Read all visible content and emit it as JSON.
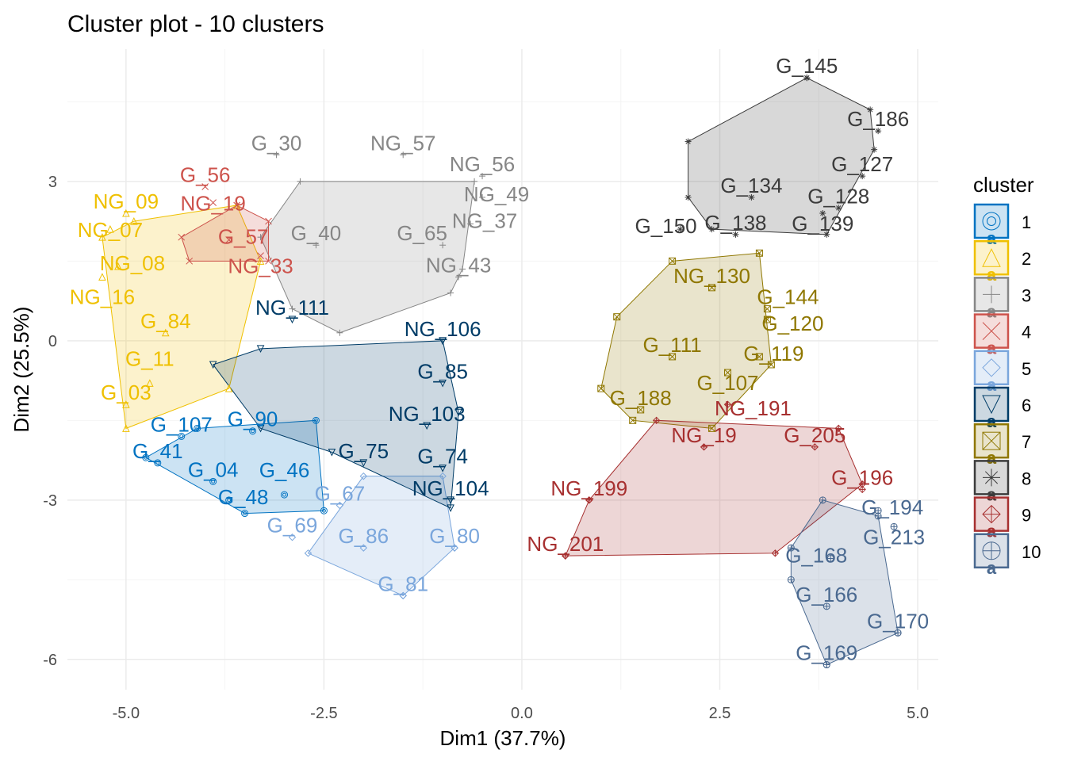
{
  "chart_data": {
    "type": "scatter",
    "title": "Cluster plot - 10 clusters",
    "xlabel": "Dim1 (37.7%)",
    "ylabel": "Dim2 (25.5%)",
    "xlim": [
      -5.74,
      5.26
    ],
    "ylim": [
      -6.57,
      5.49
    ],
    "x_ticks": [
      "-5.0",
      "-2.5",
      "0.0",
      "2.5",
      "5.0"
    ],
    "x_tick_values": [
      -5,
      -2.5,
      0,
      2.5,
      5
    ],
    "y_ticks": [
      "-6",
      "-3",
      "0",
      "3"
    ],
    "y_tick_values": [
      -6,
      -3,
      0,
      3
    ],
    "grid": true,
    "legend": {
      "title": "cluster",
      "position": "right",
      "key_glyph_letter": "a"
    },
    "clusters": [
      {
        "name": "1",
        "color": "#0073C2",
        "shape": "circle-double",
        "hull": [
          [
            -4.75,
            -2.2
          ],
          [
            -3.5,
            -3.25
          ],
          [
            -2.5,
            -3.2
          ],
          [
            -2.6,
            -1.5
          ],
          [
            -4.1,
            -1.65
          ]
        ],
        "points": [
          {
            "label": "G_41",
            "x": -4.6,
            "y": -2.3
          },
          {
            "label": "G_04",
            "x": -3.9,
            "y": -2.65
          },
          {
            "label": "G_48",
            "x": -3.7,
            "y": -3.0
          },
          {
            "label": "G_107",
            "x": -4.3,
            "y": -1.8
          },
          {
            "label": "G_90",
            "x": -3.4,
            "y": -1.7
          },
          {
            "label": "G_46",
            "x": -3.0,
            "y": -2.9
          }
        ]
      },
      {
        "name": "2",
        "color": "#EFC000",
        "shape": "triangle",
        "hull": [
          [
            -5.3,
            1.95
          ],
          [
            -5.0,
            -1.65
          ],
          [
            -3.7,
            -0.9
          ],
          [
            -3.3,
            1.5
          ],
          [
            -3.6,
            2.55
          ],
          [
            -4.9,
            2.25
          ]
        ],
        "points": [
          {
            "label": "NG_09",
            "x": -5.0,
            "y": 2.4
          },
          {
            "label": "NG_07",
            "x": -5.2,
            "y": 2.1
          },
          {
            "label": "G_03",
            "x": -5.0,
            "y": -1.2
          },
          {
            "label": "G_11",
            "x": -4.7,
            "y": -0.8
          },
          {
            "label": "NG_08",
            "x": -5.1,
            "y": 1.4
          },
          {
            "label": "NG_16",
            "x": -5.3,
            "y": 1.2
          },
          {
            "label": "G_84",
            "x": -4.5,
            "y": 0.15
          }
        ]
      },
      {
        "name": "3",
        "color": "#868686",
        "shape": "plus",
        "hull": [
          [
            -3.3,
            1.95
          ],
          [
            -2.8,
            3.0
          ],
          [
            -0.6,
            3.0
          ],
          [
            -0.75,
            1.35
          ],
          [
            -0.9,
            0.9
          ],
          [
            -2.3,
            0.15
          ],
          [
            -2.9,
            0.6
          ]
        ],
        "points": [
          {
            "label": "G_30",
            "x": -3.1,
            "y": 3.5
          },
          {
            "label": "NG_57",
            "x": -1.5,
            "y": 3.5
          },
          {
            "label": "NG_56",
            "x": -0.5,
            "y": 3.1
          },
          {
            "label": "NG_49",
            "x": -0.5,
            "y": 2.7
          },
          {
            "label": "NG_37",
            "x": -0.65,
            "y": 2.2
          },
          {
            "label": "G_65",
            "x": -1.0,
            "y": 1.8
          },
          {
            "label": "NG_43",
            "x": -0.8,
            "y": 1.2
          },
          {
            "label": "G_40",
            "x": -2.6,
            "y": 1.8
          }
        ]
      },
      {
        "name": "4",
        "color": "#CD534C",
        "shape": "cross",
        "hull": [
          [
            -4.3,
            1.95
          ],
          [
            -3.6,
            2.55
          ],
          [
            -3.2,
            2.25
          ],
          [
            -3.2,
            1.5
          ],
          [
            -4.2,
            1.5
          ]
        ],
        "points": [
          {
            "label": "G_56",
            "x": -4.0,
            "y": 2.9
          },
          {
            "label": "NG_19",
            "x": -3.9,
            "y": 2.6
          },
          {
            "label": "G_57",
            "x": -3.7,
            "y": 1.9
          },
          {
            "label": "NG_33",
            "x": -3.3,
            "y": 1.6
          }
        ]
      },
      {
        "name": "5",
        "color": "#7AA6DC",
        "shape": "diamond",
        "hull": [
          [
            -2.7,
            -4.0
          ],
          [
            -2.0,
            -2.55
          ],
          [
            -1.0,
            -2.55
          ],
          [
            -0.85,
            -3.9
          ],
          [
            -1.5,
            -4.8
          ]
        ],
        "points": [
          {
            "label": "G_69",
            "x": -2.9,
            "y": -3.7
          },
          {
            "label": "G_81",
            "x": -1.5,
            "y": -4.8
          },
          {
            "label": "G_80",
            "x": -0.85,
            "y": -3.9
          },
          {
            "label": "G_67",
            "x": -2.3,
            "y": -3.1
          },
          {
            "label": "G_86",
            "x": -2.0,
            "y": -3.9
          }
        ]
      },
      {
        "name": "6",
        "color": "#003C67",
        "shape": "triangle-down",
        "hull": [
          [
            -3.9,
            -0.45
          ],
          [
            -3.3,
            -0.15
          ],
          [
            -1.0,
            0.0
          ],
          [
            -0.8,
            -1.35
          ],
          [
            -0.9,
            -3.15
          ],
          [
            -2.4,
            -2.1
          ],
          [
            -3.3,
            -1.65
          ]
        ],
        "points": [
          {
            "label": "NG_111",
            "x": -2.9,
            "y": 0.4
          },
          {
            "label": "NG_106",
            "x": -1.0,
            "y": 0.0
          },
          {
            "label": "G_85",
            "x": -1.0,
            "y": -0.8
          },
          {
            "label": "NG_103",
            "x": -1.2,
            "y": -1.6
          },
          {
            "label": "G_74",
            "x": -1.0,
            "y": -2.4
          },
          {
            "label": "NG_104",
            "x": -0.9,
            "y": -3.0
          },
          {
            "label": "G_75",
            "x": -2.0,
            "y": -2.3
          }
        ]
      },
      {
        "name": "7",
        "color": "#8F7700",
        "shape": "square-cross",
        "hull": [
          [
            1.0,
            -0.9
          ],
          [
            1.2,
            0.45
          ],
          [
            1.9,
            1.5
          ],
          [
            3.0,
            1.65
          ],
          [
            3.15,
            -0.45
          ],
          [
            2.4,
            -1.65
          ],
          [
            1.4,
            -1.5
          ]
        ],
        "points": [
          {
            "label": "NG_130",
            "x": 2.4,
            "y": 1.0
          },
          {
            "label": "G_144",
            "x": 3.1,
            "y": 0.6
          },
          {
            "label": "G_120",
            "x": 3.1,
            "y": 0.4
          },
          {
            "label": "G_119",
            "x": 3.0,
            "y": -0.3
          },
          {
            "label": "G_111",
            "x": 1.9,
            "y": -0.3
          },
          {
            "label": "G_107",
            "x": 2.6,
            "y": -0.6
          },
          {
            "label": "G_188",
            "x": 1.5,
            "y": -1.3
          }
        ]
      },
      {
        "name": "8",
        "color": "#3B3B3B",
        "shape": "asterisk",
        "hull": [
          [
            2.1,
            3.75
          ],
          [
            3.6,
            4.95
          ],
          [
            4.4,
            4.35
          ],
          [
            4.45,
            3.6
          ],
          [
            3.85,
            2.0
          ],
          [
            2.4,
            2.1
          ],
          [
            2.1,
            2.7
          ]
        ],
        "points": [
          {
            "label": "G_145",
            "x": 3.6,
            "y": 4.95
          },
          {
            "label": "G_186",
            "x": 4.5,
            "y": 3.95
          },
          {
            "label": "G_127",
            "x": 4.3,
            "y": 3.1
          },
          {
            "label": "G_128",
            "x": 4.0,
            "y": 2.5
          },
          {
            "label": "G_139",
            "x": 3.8,
            "y": 2.4
          },
          {
            "label": "G_138",
            "x": 2.7,
            "y": 2.0
          },
          {
            "label": "G_150",
            "x": 2.0,
            "y": 2.1
          },
          {
            "label": "G_134",
            "x": 2.9,
            "y": 2.7
          }
        ]
      },
      {
        "name": "9",
        "color": "#A73030",
        "shape": "diamond-plus",
        "hull": [
          [
            0.55,
            -4.05
          ],
          [
            0.85,
            -3.0
          ],
          [
            1.7,
            -1.5
          ],
          [
            4.0,
            -1.65
          ],
          [
            4.3,
            -2.7
          ],
          [
            3.2,
            -4.0
          ]
        ],
        "points": [
          {
            "label": "NG_199",
            "x": 0.85,
            "y": -3.0
          },
          {
            "label": "NG_201",
            "x": 0.55,
            "y": -4.05
          },
          {
            "label": "NG_191",
            "x": 2.6,
            "y": -1.2
          },
          {
            "label": "G_205",
            "x": 3.7,
            "y": -2.0
          },
          {
            "label": "G_196",
            "x": 4.3,
            "y": -2.8
          },
          {
            "label": "NG_19",
            "x": 2.3,
            "y": -2.0
          }
        ]
      },
      {
        "name": "10",
        "color": "#4A6990",
        "shape": "circle-plus",
        "hull": [
          [
            3.4,
            -3.9
          ],
          [
            3.8,
            -3.0
          ],
          [
            4.5,
            -3.3
          ],
          [
            4.75,
            -5.5
          ],
          [
            3.85,
            -6.1
          ],
          [
            3.4,
            -4.5
          ]
        ],
        "points": [
          {
            "label": "G_194",
            "x": 4.5,
            "y": -3.2
          },
          {
            "label": "G_213",
            "x": 4.7,
            "y": -3.5
          },
          {
            "label": "G_168",
            "x": 3.9,
            "y": -4.1
          },
          {
            "label": "G_166",
            "x": 3.85,
            "y": -5.0
          },
          {
            "label": "G_170",
            "x": 4.75,
            "y": -5.5
          },
          {
            "label": "G_169",
            "x": 3.85,
            "y": -6.1
          }
        ]
      }
    ]
  }
}
